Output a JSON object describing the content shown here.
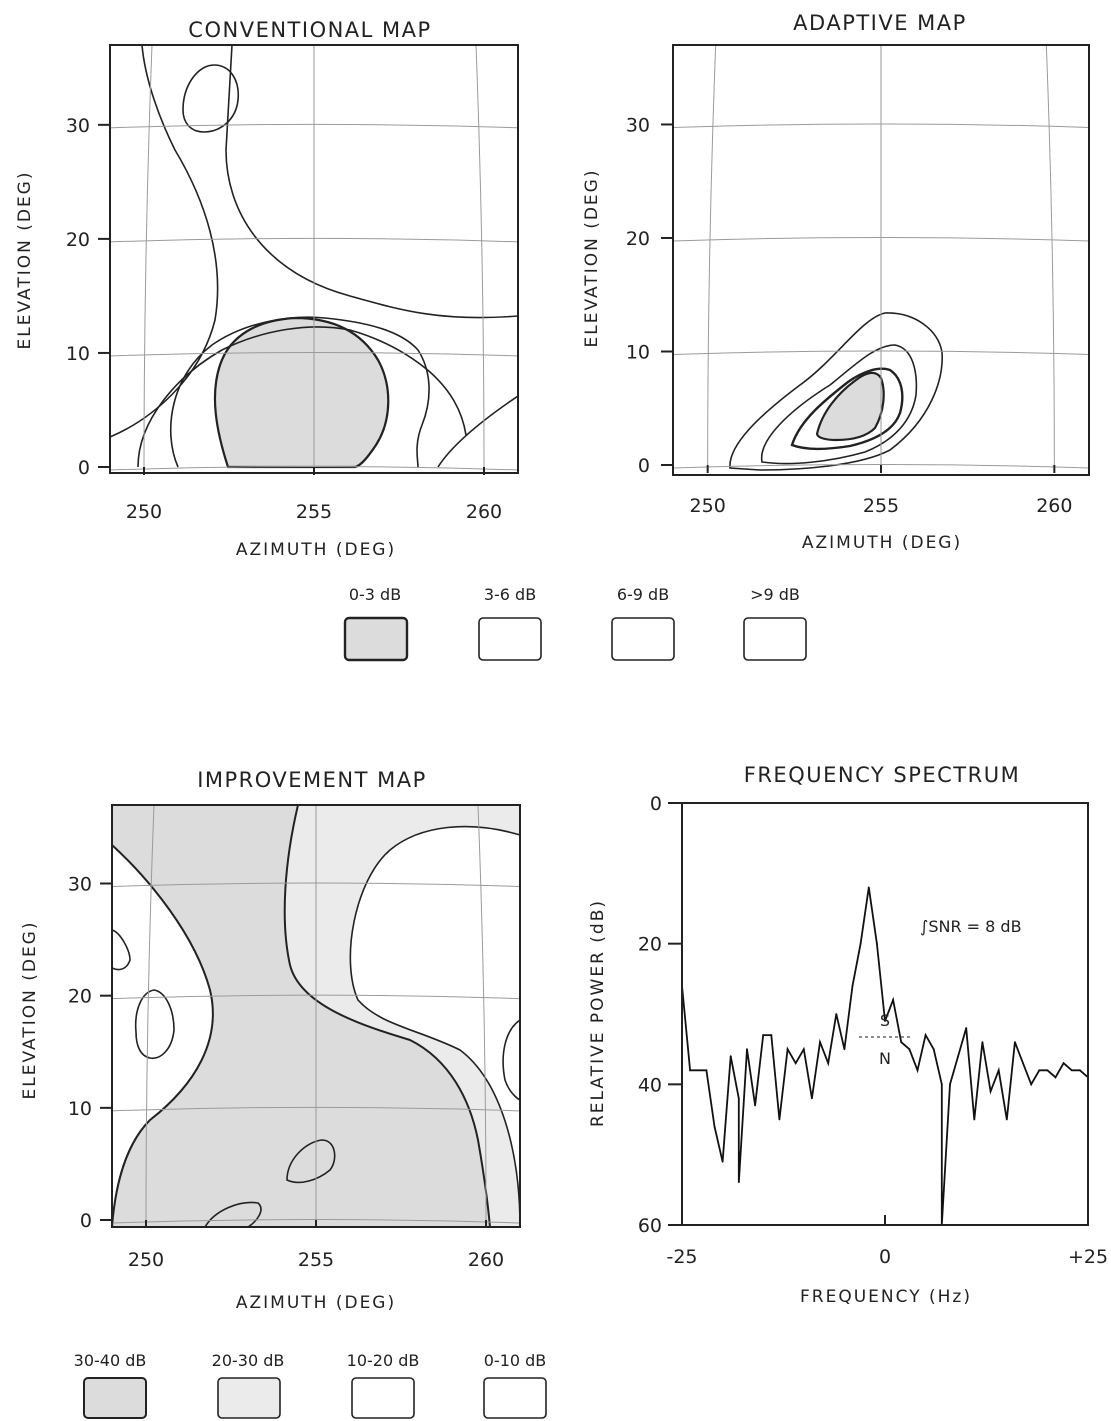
{
  "chart_data": [
    {
      "type": "heatmap",
      "title": "CONVENTIONAL MAP",
      "xlabel": "AZIMUTH (DEG)",
      "ylabel": "ELEVATION (DEG)",
      "xticks": [
        "250",
        "255",
        "260"
      ],
      "yticks": [
        "0",
        "10",
        "20",
        "30"
      ],
      "xlim": [
        249,
        261
      ],
      "ylim": [
        0,
        37
      ],
      "peak": {
        "azimuth": 255,
        "elevation": 12
      },
      "legend": [
        "0-3 dB",
        "3-6 dB",
        "6-9 dB",
        ">9 dB"
      ]
    },
    {
      "type": "heatmap",
      "title": "ADAPTIVE MAP",
      "xlabel": "AZIMUTH (DEG)",
      "ylabel": "ELEVATION (DEG)",
      "xticks": [
        "250",
        "255",
        "260"
      ],
      "yticks": [
        "0",
        "10",
        "20",
        "30"
      ],
      "xlim": [
        249,
        261
      ],
      "ylim": [
        0,
        37
      ],
      "peak": {
        "azimuth": 254.5,
        "elevation": 11
      }
    },
    {
      "type": "heatmap",
      "title": "IMPROVEMENT MAP",
      "xlabel": "AZIMUTH (DEG)",
      "ylabel": "ELEVATION (DEG)",
      "xticks": [
        "250",
        "255",
        "260"
      ],
      "yticks": [
        "0",
        "10",
        "20",
        "30"
      ],
      "xlim": [
        249,
        261
      ],
      "ylim": [
        0,
        37
      ],
      "legend": [
        "30-40 dB",
        "20-30 dB",
        "10-20 dB",
        "0-10 dB"
      ]
    },
    {
      "type": "line",
      "title": "FREQUENCY SPECTRUM",
      "xlabel": "FREQUENCY (Hz)",
      "ylabel": "RELATIVE POWER (dB)",
      "xticks": [
        "-25",
        "0",
        "+25"
      ],
      "yticks": [
        "0",
        "20",
        "40",
        "60"
      ],
      "xlim": [
        -25,
        25
      ],
      "ylim": [
        0,
        60
      ],
      "y_inverted": true,
      "annotation": "∫SNR = 8 dB",
      "signal_label": "S",
      "noise_label": "N",
      "x": [
        -25,
        -24,
        -23,
        -22,
        -21,
        -20,
        -19,
        -18,
        -17,
        -16,
        -15,
        -14,
        -13,
        -12,
        -11,
        -10,
        -9,
        -8,
        -7,
        -6,
        -5,
        -4,
        -3,
        -2,
        -1,
        0,
        1,
        2,
        3,
        4,
        5,
        6,
        7,
        8,
        9,
        10,
        11,
        12,
        13,
        14,
        15,
        16,
        17,
        18,
        19,
        20,
        21,
        22,
        23,
        24,
        25
      ],
      "y": [
        26,
        38,
        38,
        38,
        46,
        51,
        36,
        42,
        35,
        43,
        33,
        33,
        45,
        35,
        37,
        35,
        42,
        34,
        37,
        30,
        35,
        26,
        20,
        12,
        20,
        31,
        28,
        34,
        35,
        38,
        33,
        35,
        40,
        40,
        36,
        32,
        45,
        34,
        41,
        38,
        45,
        34,
        37,
        40,
        38,
        38,
        39,
        37,
        38,
        38,
        39
      ],
      "dips": [
        {
          "x": -18,
          "y": 54
        },
        {
          "x": 7,
          "y": 60
        }
      ]
    }
  ]
}
